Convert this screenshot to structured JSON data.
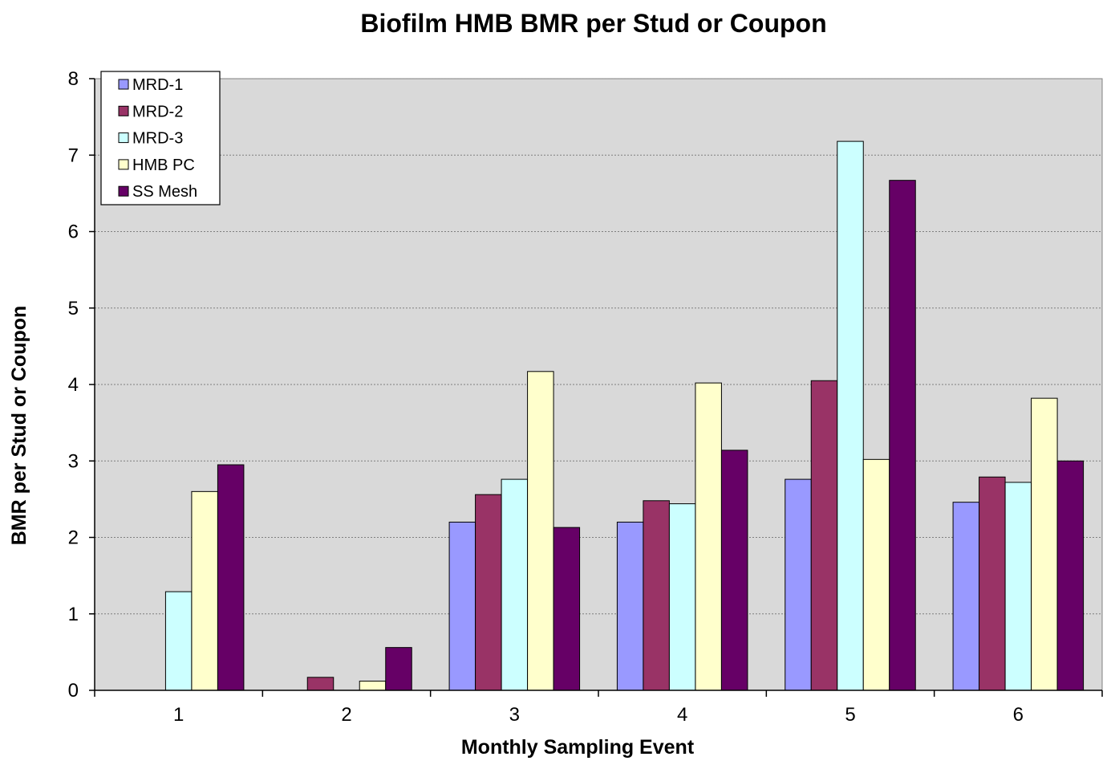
{
  "chart_data": {
    "type": "bar",
    "title": "Biofilm HMB BMR per Stud or Coupon",
    "xlabel": "Monthly Sampling Event",
    "ylabel": "BMR per Stud or Coupon",
    "categories": [
      "1",
      "2",
      "3",
      "4",
      "5",
      "6"
    ],
    "ylim": [
      0,
      8
    ],
    "yticks": [
      "0",
      "1",
      "2",
      "3",
      "4",
      "5",
      "6",
      "7",
      "8"
    ],
    "grid": true,
    "legend_position": "top-left",
    "plot_background": "#d9d9d9",
    "series": [
      {
        "name": "MRD-1",
        "color": "#9999ff",
        "values": [
          0,
          0,
          2.2,
          2.2,
          2.76,
          2.46
        ]
      },
      {
        "name": "MRD-2",
        "color": "#993366",
        "values": [
          0,
          0.17,
          2.56,
          2.48,
          4.05,
          2.79
        ]
      },
      {
        "name": "MRD-3",
        "color": "#ccffff",
        "values": [
          1.29,
          0,
          2.76,
          2.44,
          7.18,
          2.72
        ]
      },
      {
        "name": "HMB PC",
        "color": "#ffffcc",
        "values": [
          2.6,
          0.12,
          4.17,
          4.02,
          3.02,
          3.82
        ]
      },
      {
        "name": "SS Mesh",
        "color": "#660066",
        "values": [
          2.95,
          0.56,
          2.13,
          3.14,
          6.67,
          3.0
        ]
      }
    ]
  }
}
